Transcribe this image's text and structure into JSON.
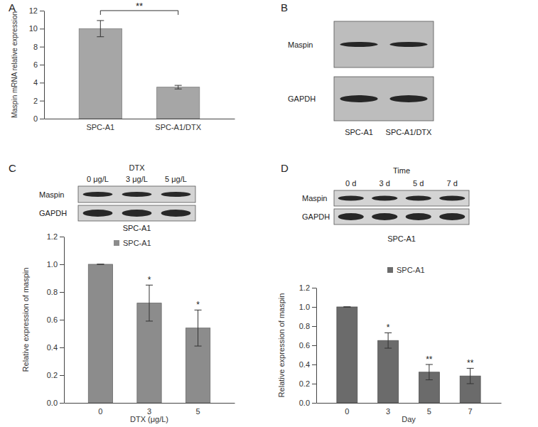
{
  "panel_labels": [
    "A",
    "B",
    "C",
    "D"
  ],
  "chart_data": [
    {
      "type": "bar",
      "ylabel": "Maspin mRNA relative expression",
      "categories": [
        "SPC-A1",
        "SPC-A1/DTX"
      ],
      "values": [
        10.0,
        3.5
      ],
      "errors": [
        0.9,
        0.2
      ],
      "color": "#a6a6a6",
      "ylim": [
        0,
        12
      ],
      "yticks": [
        0,
        2,
        4,
        6,
        8,
        10,
        12
      ],
      "significance": "**"
    },
    {
      "type": "bar",
      "ylabel": "Relative expression of maspin",
      "xlabel": "DTX (μg/L)",
      "categories": [
        "0",
        "3",
        "5"
      ],
      "series": [
        {
          "name": "SPC-A1",
          "color": "#8c8c8c",
          "values": [
            1.0,
            0.72,
            0.54
          ],
          "errors": [
            0,
            0.13,
            0.13
          ]
        }
      ],
      "ylim": [
        0,
        1.2
      ],
      "yticks": [
        {
          "value": 0,
          "label": "0.0"
        },
        0.2,
        0.4,
        0.6,
        0.8,
        {
          "value": 1,
          "label": "1.0"
        },
        1.2
      ],
      "significance": [
        null,
        "*",
        "*"
      ],
      "legend": "top"
    },
    {
      "type": "bar",
      "ylabel": "Relative expression of maspin",
      "xlabel": "Day",
      "categories": [
        "0",
        "3",
        "5",
        "7"
      ],
      "series": [
        {
          "name": "SPC-A1",
          "color": "#6b6b6b",
          "values": [
            1.0,
            0.65,
            0.32,
            0.28
          ],
          "errors": [
            0,
            0.08,
            0.08,
            0.08
          ]
        }
      ],
      "ylim": [
        0,
        1.2
      ],
      "yticks": [
        {
          "value": 0,
          "label": "0.0"
        },
        0.2,
        0.4,
        0.6,
        0.8,
        {
          "value": 1,
          "label": "1.0"
        },
        1.2
      ],
      "significance": [
        null,
        "*",
        "**",
        "**"
      ],
      "legend": "top"
    }
  ],
  "blots": [
    {
      "rows": [
        "Maspin",
        "GAPDH"
      ],
      "lanes": [
        "SPC-A1",
        "SPC-A1/DTX"
      ]
    },
    {
      "header": "DTX",
      "rows": [
        "Maspin",
        "GAPDH"
      ],
      "lanes": [
        "0 μg/L",
        "3 μg/L",
        "5 μg/L"
      ],
      "caption": "SPC-A1"
    },
    {
      "header": "Time",
      "rows": [
        "Maspin",
        "GAPDH"
      ],
      "lanes": [
        "0 d",
        "3 d",
        "5 d",
        "7 d"
      ],
      "caption": "SPC-A1"
    }
  ]
}
